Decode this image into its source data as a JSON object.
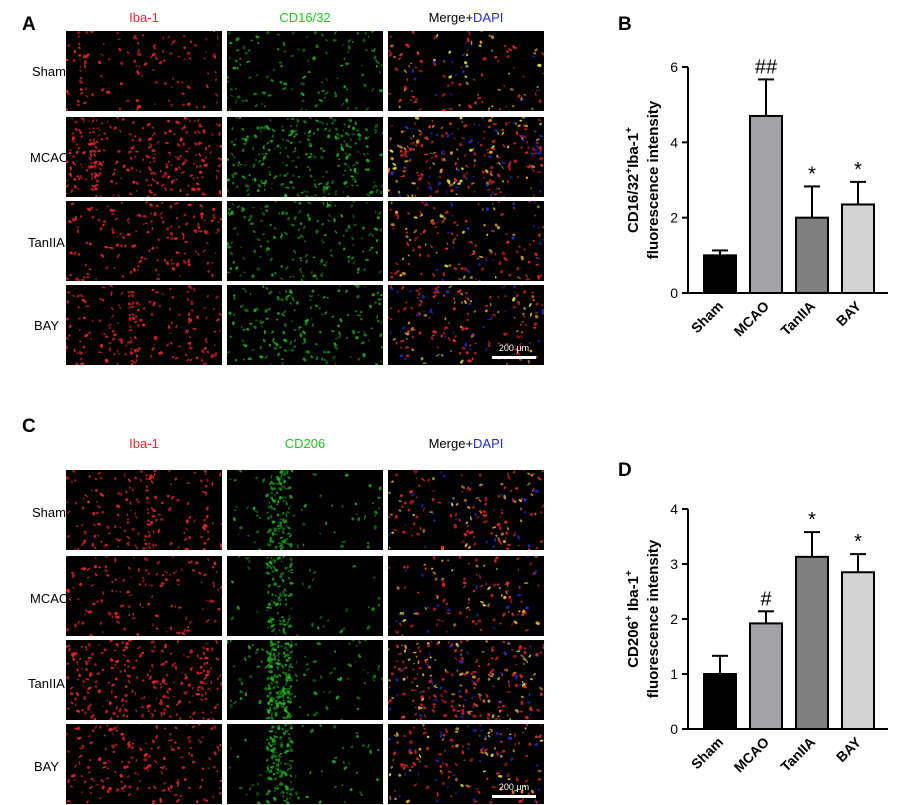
{
  "panels": {
    "A": {
      "letter": "A",
      "col_headers": {
        "c1": "Iba-1",
        "c2": "CD16/32",
        "c3_merge": "Merge+",
        "c3_dapi": "DAPI"
      },
      "rows": [
        "Sham",
        "MCAO",
        "TanIIA",
        "BAY"
      ],
      "scale_bar": "200 μm"
    },
    "B": {
      "letter": "B"
    },
    "C": {
      "letter": "C",
      "col_headers": {
        "c1": "Iba-1",
        "c2": "CD206",
        "c3_merge": "Merge+",
        "c3_dapi": "DAPI"
      },
      "rows": [
        "Sham",
        "MCAO",
        "TanIIA",
        "BAY"
      ],
      "scale_bar": "200 μm"
    },
    "D": {
      "letter": "D"
    }
  },
  "colors": {
    "red_channel": "#e8262b",
    "green_channel": "#22c422",
    "blue_channel": "#1f2bd6",
    "bar_sham": "#000000",
    "bar_mcao": "#a3a3a7",
    "bar_taniia": "#7f7f7f",
    "bar_bay": "#d3d3d3"
  },
  "chart_data": [
    {
      "panel": "B",
      "type": "bar",
      "categories": [
        "Sham",
        "MCAO",
        "TanIIA",
        "BAY"
      ],
      "values": [
        1.0,
        4.7,
        2.0,
        2.35
      ],
      "errors": [
        0.13,
        0.97,
        0.83,
        0.6
      ],
      "annotations": [
        "",
        "##",
        "*",
        "*"
      ],
      "ylabel_line1": "CD16/32",
      "ylabel_sup1": "+",
      "ylabel_mid": "Iba-1",
      "ylabel_sup2": "+",
      "ylabel_line2": "fluorescence intensity",
      "ylim": [
        0,
        6
      ],
      "yticks": [
        0,
        2,
        4,
        6
      ]
    },
    {
      "panel": "D",
      "type": "bar",
      "categories": [
        "Sham",
        "MCAO",
        "TanIIA",
        "BAY"
      ],
      "values": [
        1.0,
        1.92,
        3.13,
        2.85
      ],
      "errors": [
        0.33,
        0.22,
        0.45,
        0.33
      ],
      "annotations": [
        "",
        "#",
        "*",
        "*"
      ],
      "ylabel_line1": "CD206",
      "ylabel_sup1": "+",
      "ylabel_mid": " Iba-1",
      "ylabel_sup2": "+",
      "ylabel_line2": "fluorescence intensity",
      "ylim": [
        0,
        4
      ],
      "yticks": [
        0,
        1,
        2,
        3,
        4
      ]
    }
  ]
}
